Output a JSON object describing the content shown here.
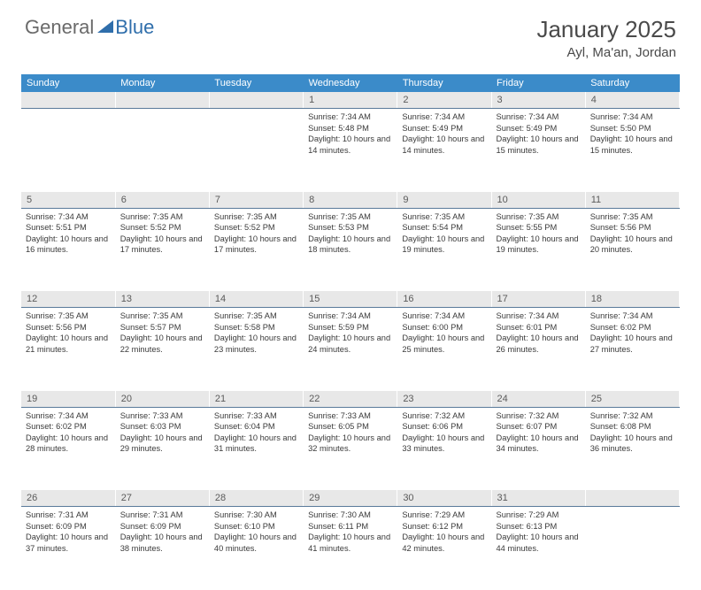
{
  "logo": {
    "part1": "General",
    "part2": "Blue"
  },
  "title": "January 2025",
  "location": "Ayl, Ma'an, Jordan",
  "colors": {
    "header_bg": "#3b8bc9",
    "header_text": "#ffffff",
    "daynum_bg": "#e8e8e8",
    "daynum_border": "#5a7a9a",
    "body_text": "#3a3a3a",
    "logo_gray": "#6a6a6a",
    "logo_blue": "#2f6eab"
  },
  "weekdays": [
    "Sunday",
    "Monday",
    "Tuesday",
    "Wednesday",
    "Thursday",
    "Friday",
    "Saturday"
  ],
  "weeks": [
    [
      null,
      null,
      null,
      {
        "n": "1",
        "sr": "7:34 AM",
        "ss": "5:48 PM",
        "dl": "10 hours and 14 minutes."
      },
      {
        "n": "2",
        "sr": "7:34 AM",
        "ss": "5:49 PM",
        "dl": "10 hours and 14 minutes."
      },
      {
        "n": "3",
        "sr": "7:34 AM",
        "ss": "5:49 PM",
        "dl": "10 hours and 15 minutes."
      },
      {
        "n": "4",
        "sr": "7:34 AM",
        "ss": "5:50 PM",
        "dl": "10 hours and 15 minutes."
      }
    ],
    [
      {
        "n": "5",
        "sr": "7:34 AM",
        "ss": "5:51 PM",
        "dl": "10 hours and 16 minutes."
      },
      {
        "n": "6",
        "sr": "7:35 AM",
        "ss": "5:52 PM",
        "dl": "10 hours and 17 minutes."
      },
      {
        "n": "7",
        "sr": "7:35 AM",
        "ss": "5:52 PM",
        "dl": "10 hours and 17 minutes."
      },
      {
        "n": "8",
        "sr": "7:35 AM",
        "ss": "5:53 PM",
        "dl": "10 hours and 18 minutes."
      },
      {
        "n": "9",
        "sr": "7:35 AM",
        "ss": "5:54 PM",
        "dl": "10 hours and 19 minutes."
      },
      {
        "n": "10",
        "sr": "7:35 AM",
        "ss": "5:55 PM",
        "dl": "10 hours and 19 minutes."
      },
      {
        "n": "11",
        "sr": "7:35 AM",
        "ss": "5:56 PM",
        "dl": "10 hours and 20 minutes."
      }
    ],
    [
      {
        "n": "12",
        "sr": "7:35 AM",
        "ss": "5:56 PM",
        "dl": "10 hours and 21 minutes."
      },
      {
        "n": "13",
        "sr": "7:35 AM",
        "ss": "5:57 PM",
        "dl": "10 hours and 22 minutes."
      },
      {
        "n": "14",
        "sr": "7:35 AM",
        "ss": "5:58 PM",
        "dl": "10 hours and 23 minutes."
      },
      {
        "n": "15",
        "sr": "7:34 AM",
        "ss": "5:59 PM",
        "dl": "10 hours and 24 minutes."
      },
      {
        "n": "16",
        "sr": "7:34 AM",
        "ss": "6:00 PM",
        "dl": "10 hours and 25 minutes."
      },
      {
        "n": "17",
        "sr": "7:34 AM",
        "ss": "6:01 PM",
        "dl": "10 hours and 26 minutes."
      },
      {
        "n": "18",
        "sr": "7:34 AM",
        "ss": "6:02 PM",
        "dl": "10 hours and 27 minutes."
      }
    ],
    [
      {
        "n": "19",
        "sr": "7:34 AM",
        "ss": "6:02 PM",
        "dl": "10 hours and 28 minutes."
      },
      {
        "n": "20",
        "sr": "7:33 AM",
        "ss": "6:03 PM",
        "dl": "10 hours and 29 minutes."
      },
      {
        "n": "21",
        "sr": "7:33 AM",
        "ss": "6:04 PM",
        "dl": "10 hours and 31 minutes."
      },
      {
        "n": "22",
        "sr": "7:33 AM",
        "ss": "6:05 PM",
        "dl": "10 hours and 32 minutes."
      },
      {
        "n": "23",
        "sr": "7:32 AM",
        "ss": "6:06 PM",
        "dl": "10 hours and 33 minutes."
      },
      {
        "n": "24",
        "sr": "7:32 AM",
        "ss": "6:07 PM",
        "dl": "10 hours and 34 minutes."
      },
      {
        "n": "25",
        "sr": "7:32 AM",
        "ss": "6:08 PM",
        "dl": "10 hours and 36 minutes."
      }
    ],
    [
      {
        "n": "26",
        "sr": "7:31 AM",
        "ss": "6:09 PM",
        "dl": "10 hours and 37 minutes."
      },
      {
        "n": "27",
        "sr": "7:31 AM",
        "ss": "6:09 PM",
        "dl": "10 hours and 38 minutes."
      },
      {
        "n": "28",
        "sr": "7:30 AM",
        "ss": "6:10 PM",
        "dl": "10 hours and 40 minutes."
      },
      {
        "n": "29",
        "sr": "7:30 AM",
        "ss": "6:11 PM",
        "dl": "10 hours and 41 minutes."
      },
      {
        "n": "30",
        "sr": "7:29 AM",
        "ss": "6:12 PM",
        "dl": "10 hours and 42 minutes."
      },
      {
        "n": "31",
        "sr": "7:29 AM",
        "ss": "6:13 PM",
        "dl": "10 hours and 44 minutes."
      },
      null
    ]
  ],
  "labels": {
    "sunrise": "Sunrise:",
    "sunset": "Sunset:",
    "daylight": "Daylight:"
  }
}
